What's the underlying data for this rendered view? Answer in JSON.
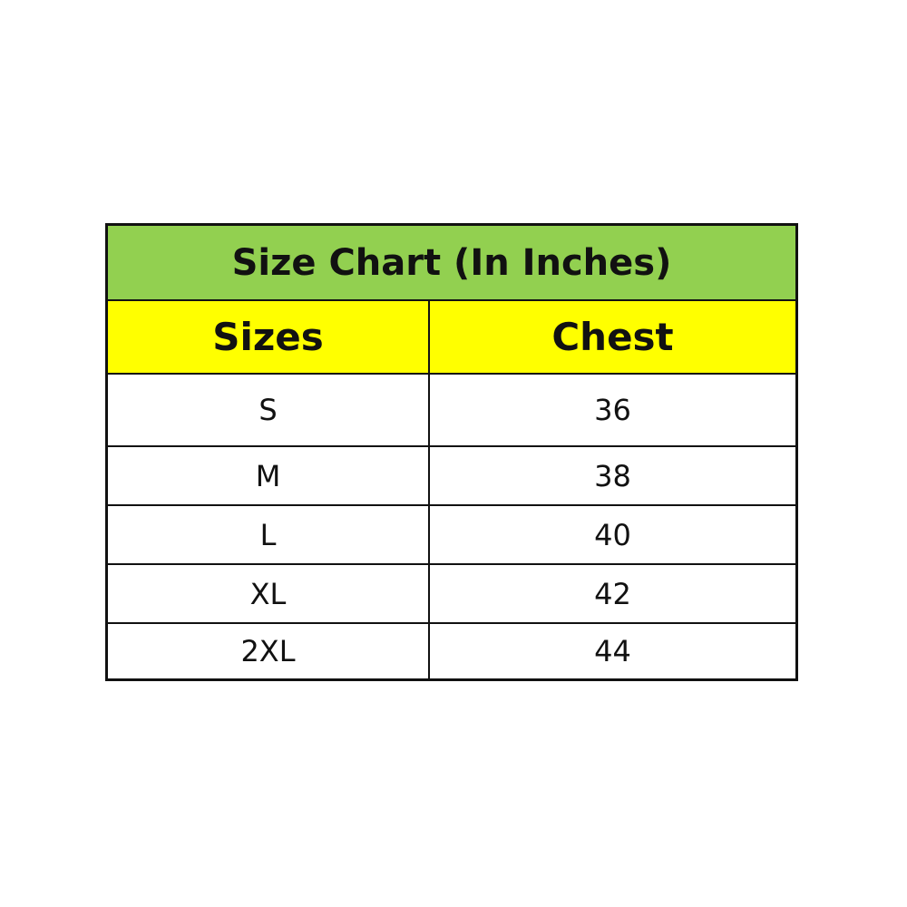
{
  "title": "Size Chart (In Inches)",
  "colors": {
    "title_bg": "#92d050",
    "header_bg": "#ffff00"
  },
  "columns": [
    "Sizes",
    "Chest"
  ],
  "rows": [
    {
      "size": "S",
      "chest": "36"
    },
    {
      "size": "M",
      "chest": "38"
    },
    {
      "size": "L",
      "chest": "40"
    },
    {
      "size": "XL",
      "chest": "42"
    },
    {
      "size": "2XL",
      "chest": "44"
    }
  ]
}
